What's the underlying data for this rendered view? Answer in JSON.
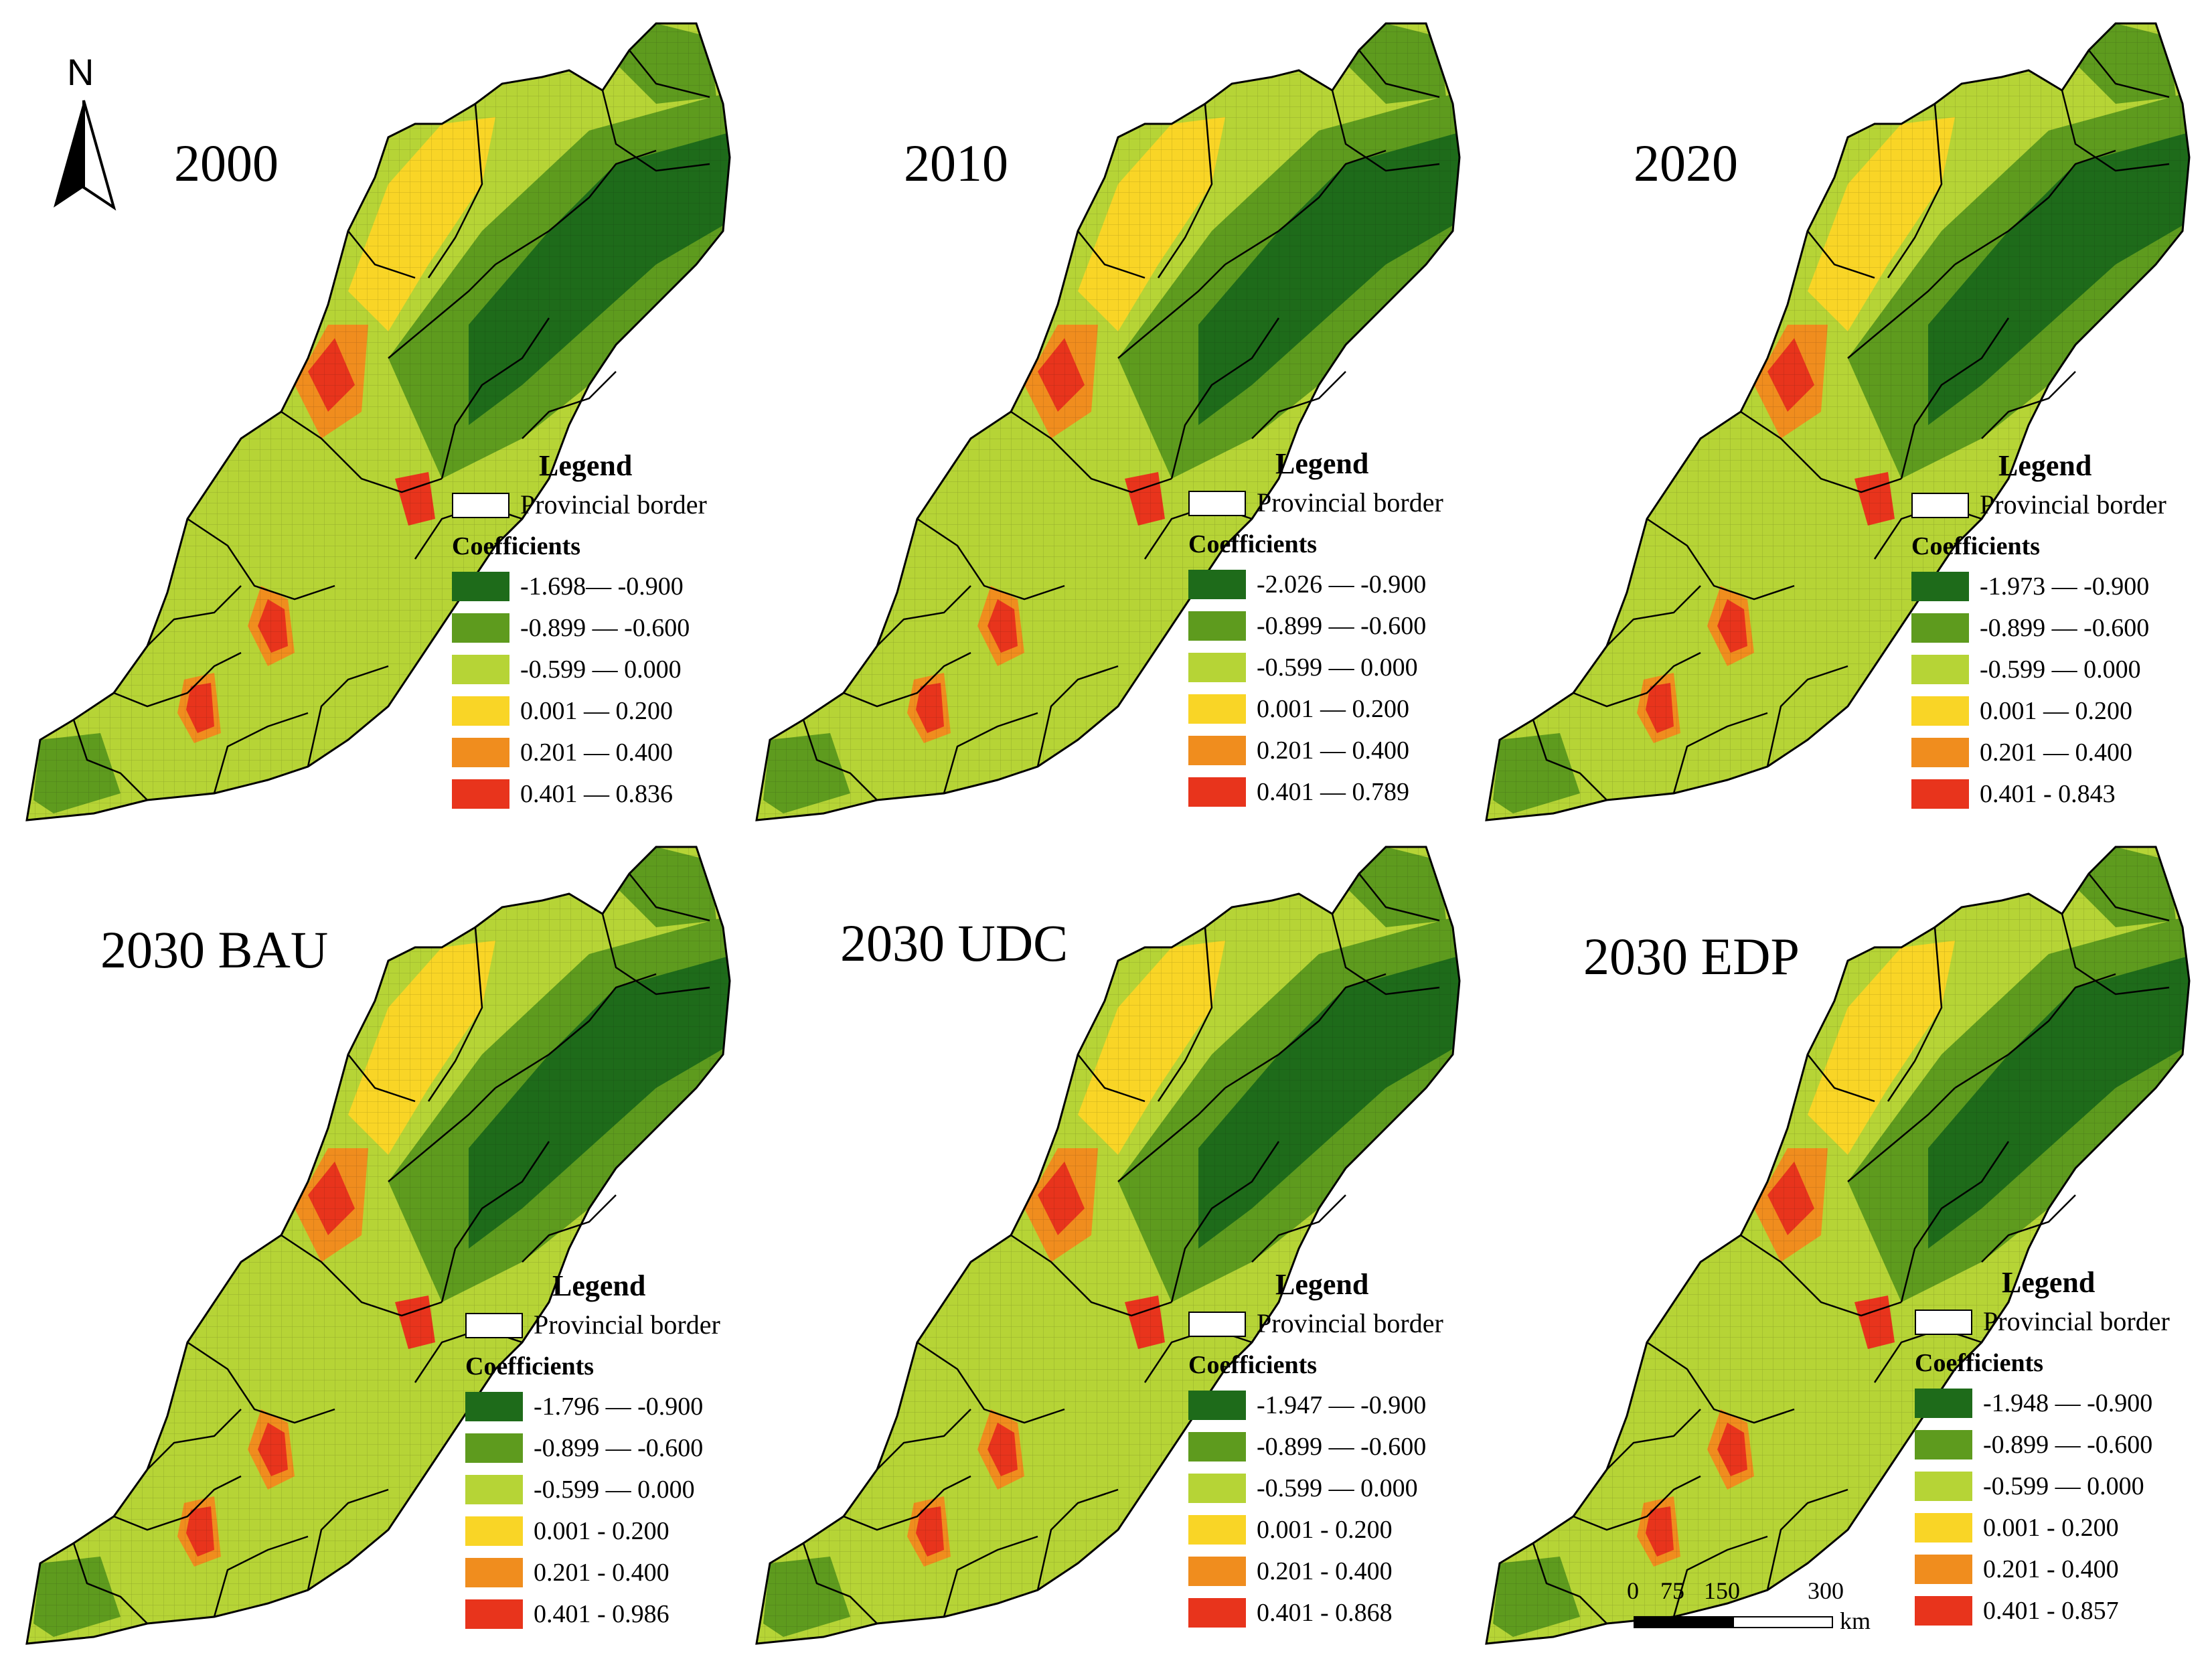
{
  "colors": {
    "class1": "#1e6b1a",
    "class2": "#5e9b1e",
    "class3": "#b6d436",
    "class4": "#f9d526",
    "class5": "#f08d1e",
    "class6": "#e8341c",
    "border": "#000000"
  },
  "north_arrow": {
    "label": "N"
  },
  "scale_bar": {
    "ticks": [
      "0",
      "75",
      "150",
      "300"
    ],
    "unit": "km"
  },
  "legend_common": {
    "title": "Legend",
    "border_label": "Provincial border",
    "coef_title": "Coefficients"
  },
  "panels": [
    {
      "title": "2000",
      "classes": [
        "-1.698— -0.900",
        "-0.899 — -0.600",
        "-0.599 — 0.000",
        "0.001 — 0.200",
        "0.201 — 0.400",
        "0.401 — 0.836"
      ]
    },
    {
      "title": "2010",
      "classes": [
        "-2.026 — -0.900",
        "-0.899 — -0.600",
        "-0.599 — 0.000",
        "0.001 — 0.200",
        "0.201 — 0.400",
        "0.401 — 0.789"
      ]
    },
    {
      "title": "2020",
      "classes": [
        "-1.973 — -0.900",
        "-0.899 — -0.600",
        "-0.599 — 0.000",
        "0.001 — 0.200",
        "0.201 — 0.400",
        "0.401 - 0.843"
      ]
    },
    {
      "title": "2030 BAU",
      "classes": [
        "-1.796 — -0.900",
        "-0.899 — -0.600",
        "-0.599 — 0.000",
        "0.001 - 0.200",
        "0.201 - 0.400",
        "0.401 - 0.986"
      ]
    },
    {
      "title": "2030 UDC",
      "classes": [
        "-1.947 — -0.900",
        "-0.899 — -0.600",
        "-0.599 — 0.000",
        "0.001 - 0.200",
        "0.201 - 0.400",
        "0.401 - 0.868"
      ]
    },
    {
      "title": "2030 EDP",
      "classes": [
        "-1.948 — -0.900",
        "-0.899 — -0.600",
        "-0.599 — 0.000",
        "0.001 - 0.200",
        "0.201 - 0.400",
        "0.401 - 0.857"
      ]
    }
  ]
}
